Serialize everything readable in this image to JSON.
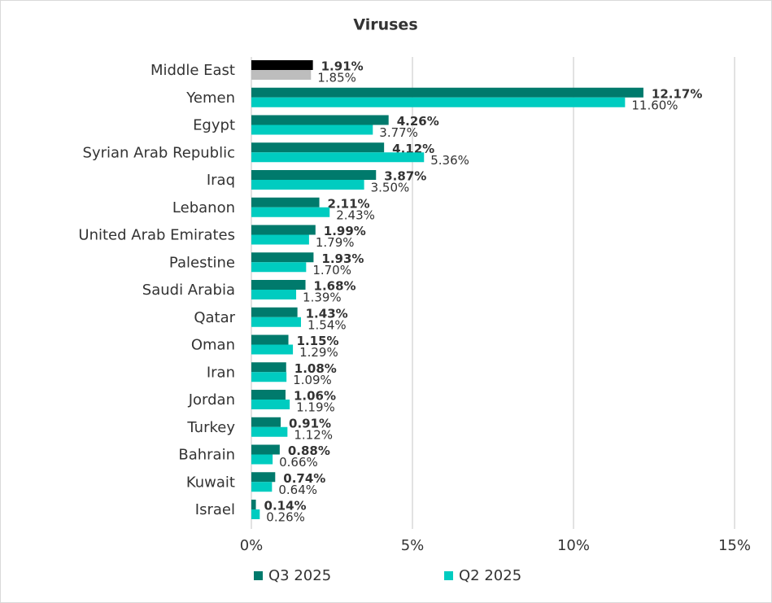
{
  "chart_data": {
    "type": "hbar",
    "title": "Viruses",
    "categories": [
      "Middle East",
      "Yemen",
      "Egypt",
      "Syrian Arab Republic",
      "Iraq",
      "Lebanon",
      "United Arab Emirates",
      "Palestine",
      "Saudi Arabia",
      "Qatar",
      "Oman",
      "Iran",
      "Jordan",
      "Turkey",
      "Bahrain",
      "Kuwait",
      "Israel"
    ],
    "series": [
      {
        "name": "Q3 2025",
        "color": "#007a6c",
        "first_color": "#000000",
        "values": [
          1.91,
          12.17,
          4.26,
          4.12,
          3.87,
          2.11,
          1.99,
          1.93,
          1.68,
          1.43,
          1.15,
          1.08,
          1.06,
          0.91,
          0.88,
          0.74,
          0.14
        ],
        "value_labels": [
          "1.91%",
          "12.17%",
          "4.26%",
          "4.12%",
          "3.87%",
          "2.11%",
          "1.99%",
          "1.93%",
          "1.68%",
          "1.43%",
          "1.15%",
          "1.08%",
          "1.06%",
          "0.91%",
          "0.88%",
          "0.74%",
          "0.14%"
        ]
      },
      {
        "name": "Q2 2025",
        "color": "#00ccc0",
        "first_color": "#bdbdbd",
        "values": [
          1.85,
          11.6,
          3.77,
          5.36,
          3.5,
          2.43,
          1.79,
          1.7,
          1.39,
          1.54,
          1.29,
          1.09,
          1.19,
          1.12,
          0.66,
          0.64,
          0.26
        ],
        "value_labels": [
          "1.85%",
          "11.60%",
          "3.77%",
          "5.36%",
          "3.50%",
          "2.43%",
          "1.79%",
          "1.70%",
          "1.39%",
          "1.54%",
          "1.29%",
          "1.09%",
          "1.19%",
          "1.12%",
          "0.66%",
          "0.64%",
          "0.26%"
        ]
      }
    ],
    "xlim": [
      0,
      15
    ],
    "xticks": [
      {
        "value": 0,
        "label": "0%"
      },
      {
        "value": 5,
        "label": "5%"
      },
      {
        "value": 10,
        "label": "10%"
      },
      {
        "value": 15,
        "label": "15%"
      }
    ],
    "grid": true
  }
}
